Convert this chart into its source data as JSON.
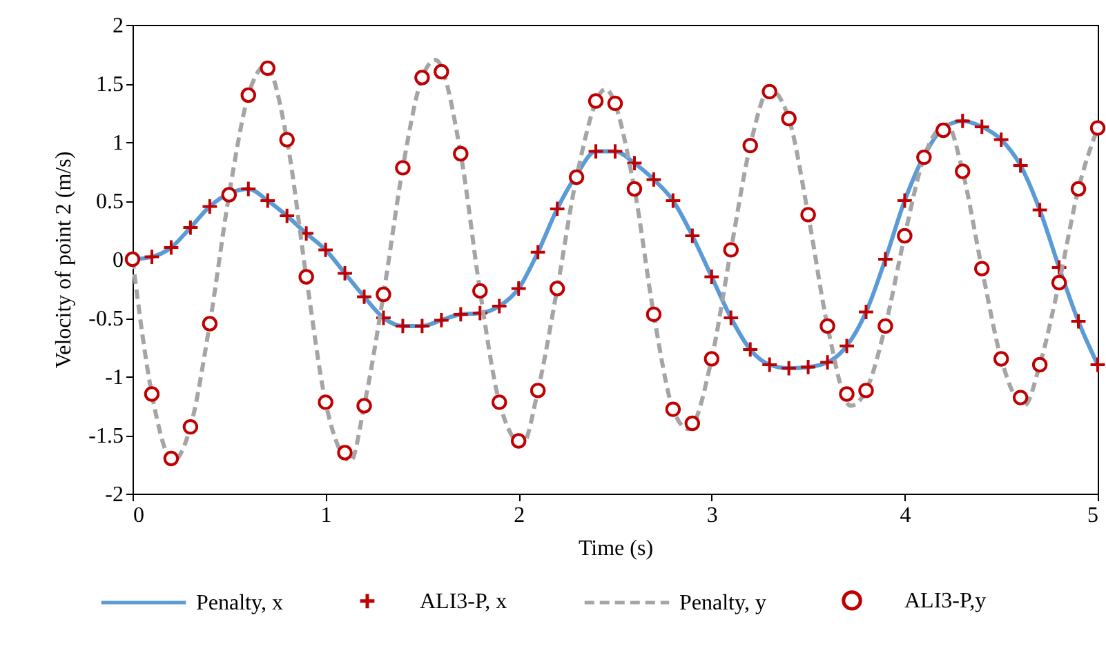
{
  "chart_data": {
    "type": "line",
    "xlabel": "Time (s)",
    "ylabel": "Velocity of point 2 (m/s)",
    "x": [
      0,
      0.1,
      0.2,
      0.3,
      0.4,
      0.5,
      0.6,
      0.7,
      0.8,
      0.9,
      1,
      1.1,
      1.2,
      1.3,
      1.4,
      1.5,
      1.6,
      1.7,
      1.8,
      1.9,
      2,
      2.1,
      2.2,
      2.3,
      2.4,
      2.5,
      2.6,
      2.7,
      2.8,
      2.9,
      3,
      3.1,
      3.2,
      3.3,
      3.4,
      3.5,
      3.6,
      3.7,
      3.8,
      3.9,
      4,
      4.1,
      4.2,
      4.3,
      4.4,
      4.5,
      4.6,
      4.7,
      4.8,
      4.9,
      5
    ],
    "series": [
      {
        "name": "Penalty, x",
        "type": "line",
        "color": "#5b9bd5",
        "line_style": "solid",
        "marker": "none",
        "values": [
          0,
          0.02,
          0.1,
          0.27,
          0.45,
          0.56,
          0.6,
          0.5,
          0.37,
          0.22,
          0.08,
          -0.12,
          -0.32,
          -0.5,
          -0.57,
          -0.57,
          -0.52,
          -0.47,
          -0.46,
          -0.4,
          -0.25,
          0.06,
          0.43,
          0.72,
          0.92,
          0.92,
          0.82,
          0.68,
          0.5,
          0.2,
          -0.15,
          -0.5,
          -0.77,
          -0.9,
          -0.93,
          -0.92,
          -0.88,
          -0.74,
          -0.45,
          0,
          0.5,
          0.88,
          1.12,
          1.18,
          1.13,
          1.02,
          0.8,
          0.42,
          -0.07,
          -0.53,
          -0.9
        ]
      },
      {
        "name": "ALI3-P, x",
        "type": "scatter",
        "color": "#c00000",
        "marker": "cross",
        "values": [
          null,
          0.02,
          0.1,
          0.27,
          0.45,
          null,
          0.6,
          0.5,
          0.37,
          0.22,
          0.08,
          -0.12,
          -0.32,
          -0.5,
          -0.57,
          -0.57,
          -0.52,
          -0.47,
          -0.46,
          -0.4,
          -0.25,
          0.06,
          0.43,
          null,
          0.92,
          0.92,
          0.82,
          0.68,
          0.5,
          0.2,
          -0.15,
          -0.5,
          -0.77,
          -0.9,
          -0.93,
          -0.92,
          -0.88,
          -0.74,
          -0.45,
          0,
          0.5,
          null,
          null,
          1.18,
          1.13,
          1.02,
          0.8,
          0.42,
          -0.07,
          -0.53,
          -0.9
        ]
      },
      {
        "name": "Penalty, y",
        "type": "line",
        "color": "#a5a5a5",
        "line_style": "dashed",
        "marker": "none",
        "x": [
          0,
          0.1,
          0.21,
          0.3,
          0.4,
          0.5,
          0.6,
          0.69,
          0.8,
          0.9,
          1,
          1.13,
          1.2,
          1.3,
          1.4,
          1.5,
          1.57,
          1.7,
          1.8,
          1.9,
          2.02,
          2.1,
          2.2,
          2.3,
          2.45,
          2.6,
          2.7,
          2.8,
          2.88,
          3,
          3.1,
          3.2,
          3.3,
          3.4,
          3.5,
          3.6,
          3.72,
          3.8,
          3.9,
          4,
          4.1,
          4.22,
          4.3,
          4.4,
          4.5,
          4.62,
          4.7,
          4.8,
          4.9,
          5
        ],
        "values": [
          0,
          -1.15,
          -1.72,
          -1.43,
          -0.55,
          0.55,
          1.4,
          1.65,
          1.02,
          -0.15,
          -1.22,
          -1.72,
          -1.25,
          -0.3,
          0.78,
          1.55,
          1.7,
          0.9,
          -0.27,
          -1.22,
          -1.58,
          -1.12,
          -0.25,
          0.7,
          1.45,
          0.6,
          -0.47,
          -1.28,
          -1.45,
          -0.85,
          0.08,
          0.97,
          1.45,
          1.2,
          0.38,
          -0.57,
          -1.25,
          -1.12,
          -0.57,
          0.2,
          0.87,
          1.15,
          0.75,
          -0.08,
          -0.85,
          -1.25,
          -0.9,
          -0.2,
          0.6,
          1.12
        ]
      },
      {
        "name": "ALI3-P,y",
        "type": "scatter",
        "color": "#c00000",
        "marker": "circle",
        "values": [
          0,
          -1.15,
          -1.7,
          -1.43,
          -0.55,
          0.55,
          1.4,
          1.63,
          1.02,
          -0.15,
          -1.22,
          -1.65,
          -1.25,
          -0.3,
          0.78,
          1.55,
          1.6,
          0.9,
          -0.27,
          -1.22,
          -1.55,
          -1.12,
          -0.25,
          0.7,
          1.35,
          1.33,
          0.6,
          -0.47,
          -1.28,
          -1.4,
          -0.85,
          0.08,
          0.97,
          1.43,
          1.2,
          0.38,
          -0.57,
          -1.15,
          -1.12,
          -0.57,
          0.2,
          0.87,
          1.1,
          0.75,
          -0.08,
          -0.85,
          -1.18,
          -0.9,
          -0.2,
          0.6,
          1.12
        ]
      }
    ],
    "xlim": [
      0,
      5
    ],
    "xticks": [
      0,
      1,
      2,
      3,
      4,
      5
    ],
    "ylim": [
      -2,
      2
    ],
    "yticks": [
      -2,
      -1.5,
      -1,
      -0.5,
      0,
      0.5,
      1,
      1.5,
      2
    ],
    "grid": false,
    "legend": "bottom"
  }
}
